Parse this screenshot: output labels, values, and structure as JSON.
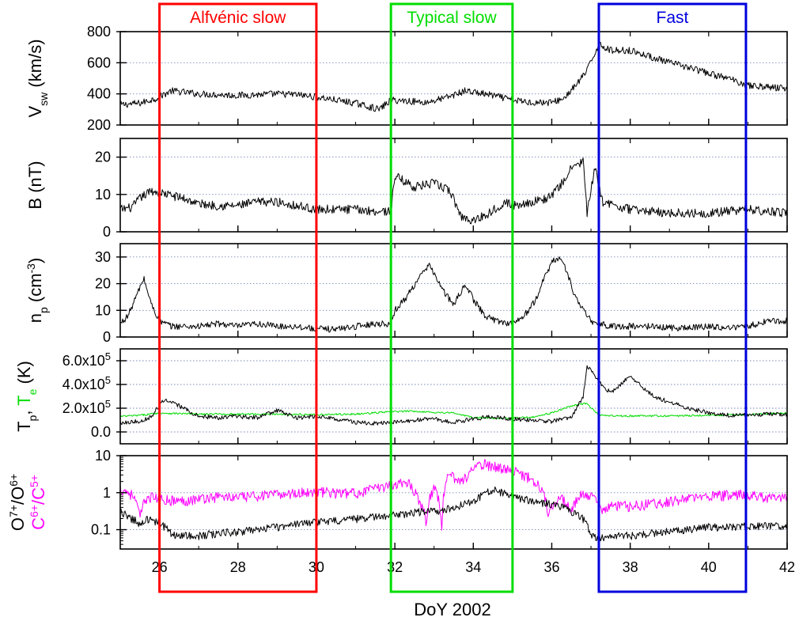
{
  "chart_data": {
    "type": "line",
    "xlabel": "DoY 2002",
    "xlim": [
      25,
      42
    ],
    "x_ticks": [
      "26",
      "28",
      "30",
      "32",
      "34",
      "36",
      "38",
      "40",
      "42"
    ],
    "intervals": [
      {
        "label": "Alfvénic slow",
        "color": "#ff0000",
        "x": [
          26.0,
          30.0
        ]
      },
      {
        "label": "Typical slow",
        "color": "#00dd00",
        "x": [
          31.9,
          35.0
        ]
      },
      {
        "label": "Fast",
        "color": "#0000dd",
        "x": [
          37.2,
          40.95
        ]
      }
    ],
    "panels": [
      {
        "key": "vsw",
        "ylabel": {
          "main": "V",
          "sub": "sw",
          "rest": " (km/s)"
        },
        "ylim": [
          200,
          800
        ],
        "y_ticks": [
          "200",
          "400",
          "600",
          "800"
        ],
        "y_tick_values": [
          200,
          400,
          600,
          800
        ],
        "grid_values": [
          400,
          600
        ],
        "series": [
          {
            "color": "#000000",
            "noise": 22,
            "x": [
              25,
              25.5,
              25.9,
              26.3,
              27,
              28,
              28.5,
              29,
              29.5,
              30,
              30.5,
              31,
              31.6,
              31.9,
              32.3,
              32.8,
              33.3,
              33.8,
              34.5,
              35.0,
              35.5,
              36.0,
              36.3,
              36.6,
              36.9,
              37.2,
              37.5,
              38.0,
              38.5,
              39.0,
              39.5,
              40.0,
              40.5,
              41.0,
              41.5,
              42
            ],
            "y": [
              330,
              340,
              370,
              420,
              400,
              390,
              395,
              400,
              395,
              380,
              360,
              340,
              300,
              360,
              355,
              345,
              375,
              420,
              390,
              360,
              345,
              345,
              370,
              450,
              550,
              720,
              680,
              680,
              640,
              600,
              570,
              530,
              500,
              455,
              445,
              435
            ]
          }
        ]
      },
      {
        "key": "b",
        "ylabel": {
          "main": "B (nT)"
        },
        "ylim": [
          0,
          25
        ],
        "y_ticks": [
          "0",
          "10",
          "20"
        ],
        "y_tick_values": [
          0,
          10,
          20
        ],
        "grid_values": [
          10,
          20
        ],
        "series": [
          {
            "color": "#000000",
            "noise": 1.2,
            "x": [
              25,
              25.3,
              25.5,
              25.8,
              26.2,
              26.6,
              27,
              27.5,
              28,
              28.5,
              29,
              29.5,
              30,
              30.5,
              31,
              31.5,
              31.9,
              32.0,
              32.5,
              33.0,
              33.4,
              33.7,
              34.0,
              34.4,
              34.8,
              35.0,
              35.5,
              35.9,
              36.2,
              36.5,
              36.8,
              36.9,
              37.1,
              37.3,
              37.6,
              38.0,
              38.5,
              39.0,
              39.5,
              40.0,
              40.5,
              41.0,
              41.5,
              42
            ],
            "y": [
              6,
              6.5,
              9,
              11,
              10,
              9,
              7.5,
              7,
              7,
              8,
              8,
              7,
              6,
              6,
              6,
              5.5,
              5.5,
              15,
              12,
              13,
              11,
              4,
              3,
              5,
              8,
              7,
              8,
              9,
              12,
              17,
              19,
              5,
              17,
              8,
              7,
              6,
              5.5,
              5,
              5,
              5,
              5.5,
              6,
              5.5,
              5
            ]
          }
        ]
      },
      {
        "key": "np",
        "ylabel": {
          "main": "n",
          "sub": "p",
          "rest": " (cm",
          "sup": "-3",
          "tail": ")"
        },
        "ylim": [
          0,
          35
        ],
        "y_ticks": [
          "0",
          "10",
          "20",
          "30"
        ],
        "y_tick_values": [
          0,
          10,
          20,
          30
        ],
        "grid_values": [
          10,
          20,
          30
        ],
        "series": [
          {
            "color": "#000000",
            "noise": 1.2,
            "x": [
              25,
              25.2,
              25.4,
              25.6,
              25.8,
              26.0,
              26.3,
              27,
              27.5,
              28,
              28.5,
              29,
              29.5,
              30,
              30.5,
              31,
              31.5,
              31.9,
              32.0,
              32.3,
              32.6,
              32.9,
              33.2,
              33.5,
              33.8,
              34.0,
              34.3,
              34.6,
              35.0,
              35.3,
              35.6,
              35.8,
              36.0,
              36.2,
              36.4,
              36.6,
              36.8,
              37.0,
              37.2,
              37.5,
              38.0,
              38.5,
              39.0,
              39.5,
              40.0,
              40.5,
              41.0,
              41.5,
              42
            ],
            "y": [
              5,
              8,
              15,
              22,
              12,
              6,
              4,
              4,
              5,
              4,
              5,
              4,
              4,
              3,
              3,
              4,
              5,
              5,
              10,
              15,
              22,
              27,
              18,
              12,
              20,
              14,
              8,
              6,
              5,
              8,
              14,
              22,
              28,
              30,
              24,
              15,
              10,
              6,
              5,
              4,
              4,
              4,
              3.5,
              3.5,
              4,
              3.5,
              4,
              6,
              6
            ]
          }
        ]
      },
      {
        "key": "temp",
        "ylabel_parts": [
          {
            "text": "T",
            "color": "#000000"
          },
          {
            "text": "p",
            "color": "#000000",
            "sub": true
          },
          {
            "text": ", ",
            "color": "#000000"
          },
          {
            "text": "T",
            "color": "#00dd00"
          },
          {
            "text": "e",
            "color": "#00dd00",
            "sub": true
          },
          {
            "text": " (K)",
            "color": "#000000"
          }
        ],
        "ylim": [
          -100000,
          700000
        ],
        "y_ticks": [
          {
            "base": "0.0",
            "exp": ""
          },
          {
            "base": "2.0x10",
            "exp": "5"
          },
          {
            "base": "4.0x10",
            "exp": "5"
          },
          {
            "base": "6.0x10",
            "exp": "5"
          }
        ],
        "y_tick_values": [
          0,
          200000,
          400000,
          600000
        ],
        "grid_values": [
          0,
          200000,
          400000,
          600000
        ],
        "series": [
          {
            "color": "#00dd00",
            "noise": 8000,
            "x": [
              25,
              25.5,
              26.0,
              27,
              28,
              29,
              30,
              31,
              31.9,
              32.5,
              33.0,
              33.5,
              34.0,
              35.0,
              35.5,
              36.0,
              36.5,
              36.9,
              37.2,
              37.5,
              38,
              39,
              40,
              41,
              42
            ],
            "y": [
              130000,
              140000,
              160000,
              150000,
              150000,
              150000,
              145000,
              150000,
              170000,
              175000,
              165000,
              160000,
              120000,
              115000,
              125000,
              160000,
              220000,
              240000,
              140000,
              135000,
              135000,
              135000,
              140000,
              145000,
              160000
            ]
          },
          {
            "color": "#000000",
            "noise": 18000,
            "x": [
              25,
              25.5,
              25.8,
              26.1,
              26.5,
              27.0,
              27.5,
              28,
              28.5,
              29,
              29.5,
              30,
              30.5,
              31,
              31.5,
              32.0,
              32.5,
              33.0,
              33.5,
              34.0,
              34.5,
              35.0,
              35.5,
              36.0,
              36.5,
              36.8,
              36.9,
              37.2,
              37.5,
              38.0,
              38.3,
              38.6,
              39,
              39.5,
              40,
              40.5,
              41,
              41.5,
              42
            ],
            "y": [
              80000,
              90000,
              130000,
              270000,
              220000,
              130000,
              120000,
              130000,
              120000,
              180000,
              120000,
              130000,
              110000,
              80000,
              70000,
              80000,
              100000,
              110000,
              80000,
              110000,
              130000,
              110000,
              100000,
              90000,
              120000,
              300000,
              560000,
              420000,
              330000,
              470000,
              380000,
              300000,
              250000,
              200000,
              160000,
              140000,
              140000,
              150000,
              150000
            ]
          }
        ]
      },
      {
        "key": "ratios",
        "ylabel_parts": [
          {
            "text": "O",
            "color": "#000000"
          },
          {
            "text": "7+",
            "color": "#000000",
            "sup": true
          },
          {
            "text": "/O",
            "color": "#000000"
          },
          {
            "text": "6+",
            "color": "#000000",
            "sup": true
          }
        ],
        "ylabel2_parts": [
          {
            "text": "C",
            "color": "#ff00ff"
          },
          {
            "text": "6+",
            "color": "#ff00ff",
            "sup": true
          },
          {
            "text": "/C",
            "color": "#ff00ff"
          },
          {
            "text": "5+",
            "color": "#ff00ff",
            "sup": true
          }
        ],
        "scale": "log",
        "ylim": [
          0.03,
          10
        ],
        "y_ticks": [
          "0.1",
          "1",
          "10"
        ],
        "y_tick_values": [
          0.1,
          1,
          10
        ],
        "grid_values": [
          0.1,
          1
        ],
        "series": [
          {
            "color": "#ff00ff",
            "noise": 0.08,
            "x": [
              25,
              25.3,
              25.5,
              25.7,
              26,
              26.5,
              27,
              27.5,
              28,
              28.5,
              29,
              29.5,
              30,
              30.5,
              31,
              31.5,
              32,
              32.3,
              32.6,
              32.8,
              33,
              33.2,
              33.4,
              33.6,
              33.8,
              34,
              34.3,
              34.6,
              35,
              35.3,
              35.6,
              35.9,
              36.2,
              36.5,
              36.8,
              37.0,
              37.3,
              37.6,
              38,
              38.5,
              39,
              39.5,
              40,
              40.5,
              41,
              41.5,
              42
            ],
            "y": [
              1.3,
              0.9,
              0.2,
              0.8,
              0.7,
              0.6,
              0.7,
              0.8,
              0.75,
              0.85,
              0.9,
              1.0,
              1.1,
              1.0,
              1.0,
              1.3,
              1.8,
              2.0,
              0.7,
              0.15,
              1.4,
              0.1,
              3.5,
              2.0,
              2.5,
              4.5,
              6.0,
              5.0,
              4.0,
              3.0,
              2.0,
              0.3,
              0.8,
              0.3,
              1.0,
              0.8,
              0.35,
              0.45,
              0.45,
              0.5,
              0.6,
              0.7,
              0.8,
              0.9,
              0.9,
              0.75,
              0.7
            ]
          },
          {
            "color": "#000000",
            "noise": 0.06,
            "x": [
              25,
              25.3,
              25.5,
              25.7,
              26,
              26.3,
              26.5,
              27,
              27.5,
              28,
              28.5,
              29,
              29.5,
              30,
              30.5,
              31,
              31.5,
              32,
              32.5,
              33,
              33.5,
              34,
              34.5,
              35,
              35.5,
              36,
              36.3,
              36.5,
              36.8,
              37.0,
              37.3,
              37.6,
              38,
              38.5,
              39,
              39.5,
              40,
              40.5,
              41,
              41.5,
              42
            ],
            "y": [
              0.3,
              0.2,
              0.15,
              0.2,
              0.15,
              0.08,
              0.07,
              0.07,
              0.08,
              0.09,
              0.1,
              0.12,
              0.14,
              0.16,
              0.18,
              0.2,
              0.22,
              0.25,
              0.3,
              0.32,
              0.4,
              0.6,
              1.2,
              0.8,
              0.6,
              0.5,
              0.4,
              0.3,
              0.2,
              0.07,
              0.06,
              0.07,
              0.07,
              0.08,
              0.09,
              0.1,
              0.12,
              0.12,
              0.13,
              0.13,
              0.13
            ]
          }
        ]
      }
    ]
  }
}
